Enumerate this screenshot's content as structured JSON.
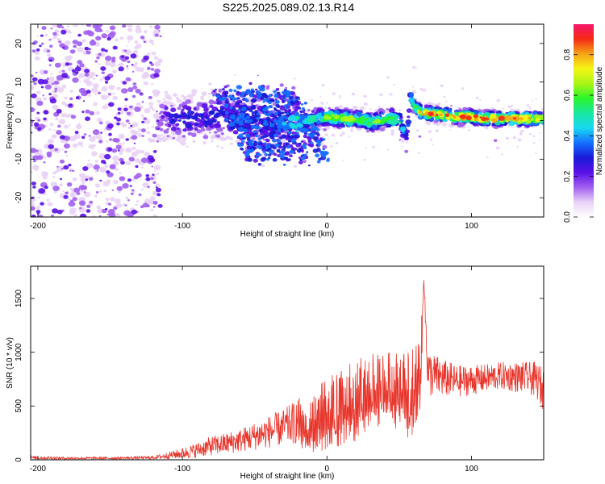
{
  "title": "S225.2025.089.02.13.R14",
  "colors": {
    "snr_line": "#e8362c",
    "colormap": [
      "#ffffff",
      "#e9d2f7",
      "#a15ff0",
      "#5a11e8",
      "#1a1ad6",
      "#1470ff",
      "#18d8f0",
      "#18e8a0",
      "#2af52a",
      "#aaf516",
      "#f5f516",
      "#f5a516",
      "#f52a16",
      "#f5166a"
    ]
  },
  "chart_data": [
    {
      "type": "heatmap",
      "title": "",
      "xlabel": "Height of straight line (km)",
      "ylabel": "Frequency (Hz)",
      "xlim": [
        -205,
        150
      ],
      "ylim": [
        -25,
        25
      ],
      "x_ticks": [
        -200,
        -100,
        0,
        100
      ],
      "y_ticks": [
        -20,
        -10,
        0,
        10,
        20
      ],
      "colorbar": {
        "label": "Normalized spectral amplitude",
        "range": [
          0,
          0.95
        ],
        "ticks": [
          0.0,
          0.2,
          0.4,
          0.6,
          0.8
        ]
      },
      "ridge": {
        "x": [
          -205,
          -180,
          -150,
          -120,
          -110,
          -100,
          -80,
          -60,
          -40,
          -30,
          -20,
          -10,
          0,
          10,
          20,
          30,
          40,
          50,
          55,
          58,
          60,
          65,
          70,
          80,
          90,
          100,
          110,
          120,
          130,
          140,
          150
        ],
        "freq": [
          0,
          0,
          0,
          0,
          1,
          0.5,
          1,
          0.5,
          -1,
          0,
          -0.5,
          0.5,
          1,
          0.5,
          0.5,
          -0.5,
          0.5,
          0.5,
          -5,
          6,
          4,
          2,
          2,
          1.5,
          1,
          1,
          0.5,
          0.5,
          0.5,
          0.5,
          0.5
        ],
        "amplitude": [
          0.1,
          0.1,
          0.1,
          0.1,
          0.25,
          0.3,
          0.3,
          0.35,
          0.3,
          0.4,
          0.5,
          0.5,
          0.6,
          0.65,
          0.65,
          0.6,
          0.6,
          0.55,
          0.3,
          0.5,
          0.55,
          0.75,
          0.85,
          0.8,
          0.8,
          0.8,
          0.85,
          0.8,
          0.8,
          0.8,
          0.7
        ]
      }
    },
    {
      "type": "line",
      "title": "",
      "xlabel": "Height of straight line (km)",
      "ylabel": "SNR (10 * v/v)",
      "xlim": [
        -205,
        150
      ],
      "ylim": [
        0,
        1800
      ],
      "x_ticks": [
        -200,
        -100,
        0,
        100
      ],
      "y_ticks": [
        0,
        500,
        1000,
        1500
      ],
      "series": [
        {
          "x": [
            -205,
            -180,
            -150,
            -120,
            -100,
            -90,
            -80,
            -70,
            -60,
            -50,
            -40,
            -30,
            -20,
            -10,
            0,
            10,
            20,
            30,
            40,
            50,
            55,
            60,
            65,
            67,
            70,
            80,
            90,
            100,
            110,
            120,
            130,
            140,
            145,
            150
          ],
          "mean": [
            20,
            15,
            15,
            20,
            60,
            90,
            130,
            150,
            180,
            220,
            260,
            300,
            360,
            420,
            480,
            550,
            620,
            680,
            720,
            700,
            650,
            700,
            900,
            1700,
            800,
            760,
            730,
            740,
            760,
            780,
            770,
            760,
            740,
            650
          ],
          "spread": [
            15,
            12,
            12,
            15,
            50,
            70,
            90,
            100,
            110,
            130,
            150,
            170,
            210,
            250,
            280,
            300,
            320,
            300,
            280,
            320,
            350,
            350,
            300,
            0,
            220,
            180,
            150,
            140,
            130,
            130,
            140,
            150,
            170,
            200
          ]
        }
      ]
    }
  ]
}
